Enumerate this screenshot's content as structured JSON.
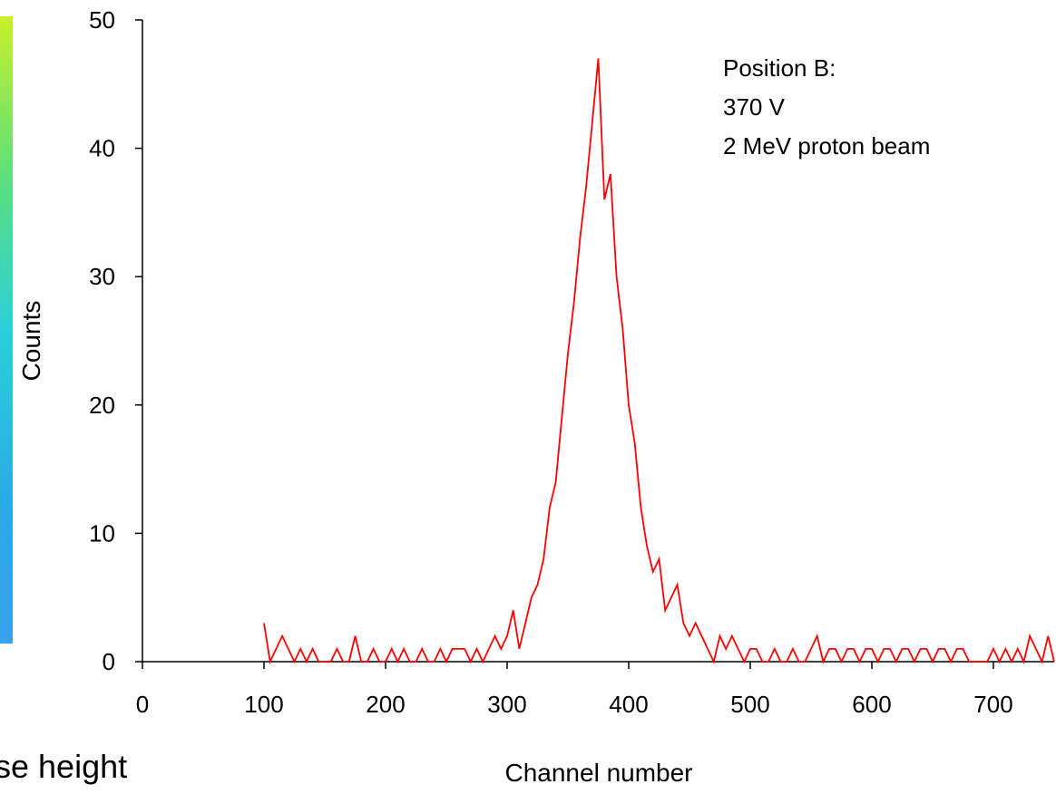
{
  "chart_data": {
    "type": "line",
    "xlabel": "Channel number",
    "ylabel": "Counts",
    "side_label": "se height",
    "annotations": [
      "Position B:",
      "370 V",
      "2 MeV proton beam"
    ],
    "xlim": [
      0,
      750
    ],
    "ylim": [
      0,
      50
    ],
    "xticks": [
      0,
      100,
      200,
      300,
      400,
      500,
      600,
      700
    ],
    "yticks": [
      0,
      10,
      20,
      30,
      40,
      50
    ],
    "x": [
      100,
      105,
      110,
      115,
      120,
      125,
      130,
      135,
      140,
      145,
      150,
      155,
      160,
      165,
      170,
      175,
      180,
      185,
      190,
      195,
      200,
      205,
      210,
      215,
      220,
      225,
      230,
      235,
      240,
      245,
      250,
      255,
      260,
      265,
      270,
      275,
      280,
      285,
      290,
      295,
      300,
      305,
      310,
      315,
      320,
      325,
      330,
      335,
      340,
      345,
      350,
      355,
      360,
      365,
      370,
      375,
      380,
      385,
      390,
      395,
      400,
      405,
      410,
      415,
      420,
      425,
      430,
      435,
      440,
      445,
      450,
      455,
      460,
      465,
      470,
      475,
      480,
      485,
      490,
      495,
      500,
      505,
      510,
      515,
      520,
      525,
      530,
      535,
      540,
      545,
      550,
      555,
      560,
      565,
      570,
      575,
      580,
      585,
      590,
      595,
      600,
      605,
      610,
      615,
      620,
      625,
      630,
      635,
      640,
      645,
      650,
      655,
      660,
      665,
      670,
      675,
      680,
      685,
      690,
      695,
      700,
      705,
      710,
      715,
      720,
      725,
      730,
      735,
      740,
      745,
      750
    ],
    "series": [
      {
        "name": "Position B",
        "color": "#ff0000",
        "values": [
          3,
          0,
          1,
          2,
          1,
          0,
          1,
          0,
          1,
          0,
          0,
          0,
          1,
          0,
          0,
          2,
          0,
          0,
          1,
          0,
          0,
          1,
          0,
          1,
          0,
          0,
          1,
          0,
          0,
          1,
          0,
          1,
          1,
          1,
          0,
          1,
          0,
          1,
          2,
          1,
          2,
          4,
          1,
          3,
          5,
          6,
          8,
          12,
          14,
          19,
          24,
          28,
          33,
          37,
          42,
          47,
          36,
          38,
          30,
          26,
          20,
          17,
          12,
          9,
          7,
          8,
          4,
          5,
          6,
          3,
          2,
          3,
          2,
          1,
          0,
          2,
          1,
          2,
          1,
          0,
          1,
          1,
          0,
          0,
          1,
          0,
          0,
          1,
          0,
          0,
          1,
          2,
          0,
          1,
          1,
          0,
          1,
          1,
          0,
          1,
          1,
          0,
          1,
          1,
          0,
          1,
          1,
          0,
          1,
          1,
          0,
          1,
          1,
          0,
          1,
          1,
          0,
          0,
          0,
          0,
          1,
          0,
          1,
          0,
          1,
          0,
          2,
          1,
          0,
          2,
          0
        ]
      }
    ]
  }
}
